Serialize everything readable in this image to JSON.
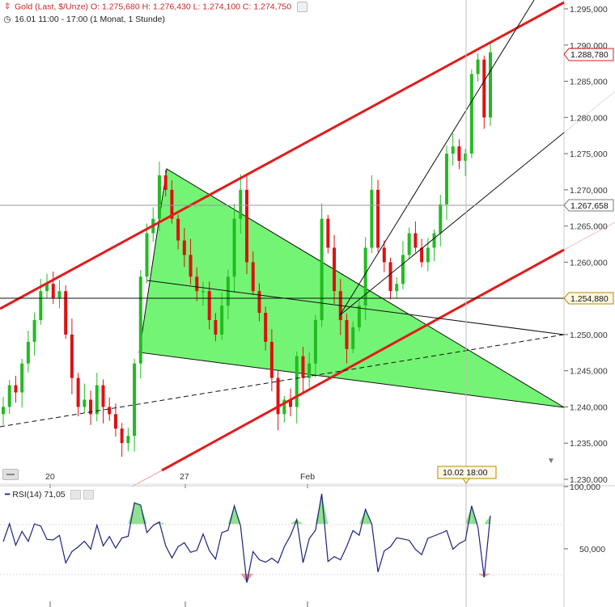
{
  "header": {
    "line1": "Gold (Last, $/Unze)  O: 1.275,680  H: 1.276,430  L: 1.274,100  C: 1.274,750",
    "line2": "16.01 11:00 - 17:00 (1 Monat, 1 Stunde)"
  },
  "rsi": {
    "label": "RSI(14)",
    "value": "71,05"
  },
  "cursor_date": "10.02 18:00",
  "colors": {
    "up": "#22bb22",
    "down": "#dd1111",
    "channel": "#e31b1b",
    "wedge": "#5cf25c",
    "rsi_line": "#1a237e",
    "rsi_over": "#8fe08f",
    "rsi_under": "#f19a9a"
  },
  "chart_data": {
    "type": "line",
    "price_axis": {
      "ticks": [
        "1.295,000",
        "1.290,000",
        "1.285,000",
        "1.280,000",
        "1.275,000",
        "1.270,000",
        "1.265,000",
        "1.260,000",
        "1.255,000",
        "1.250,000",
        "1.245,000",
        "1.240,000",
        "1.235,000",
        "1.230,000"
      ],
      "ylim": [
        1230,
        1297
      ]
    },
    "x_ticks": [
      "20",
      "27",
      "Feb"
    ],
    "price_labels": {
      "current": "1.288,780",
      "level_1": "1.267,658",
      "level_2": "1.254,880"
    },
    "series": [
      {
        "values": [
          1240,
          1243,
          1242,
          1246,
          1249,
          1252,
          1256,
          1257,
          1255,
          1256,
          1250,
          1244,
          1240,
          1241,
          1239,
          1243,
          1240,
          1239,
          1237,
          1235,
          1236,
          1246,
          1258,
          1264,
          1266,
          1272,
          1270,
          1266,
          1263,
          1261,
          1258,
          1256,
          1256,
          1252,
          1250,
          1254,
          1258,
          1266,
          1270,
          1260,
          1256,
          1253,
          1249,
          1244,
          1239,
          1241,
          1240,
          1247,
          1244,
          1246,
          1252,
          1266,
          1262,
          1256,
          1252,
          1248,
          1251,
          1254,
          1262,
          1270,
          1262,
          1260,
          1256,
          1257,
          1261,
          1264,
          1262,
          1260,
          1262,
          1264,
          1268,
          1275,
          1276,
          1274,
          1275,
          1286,
          1288,
          1280,
          1289
        ]
      }
    ],
    "rsi_axis": {
      "ticks": [
        "100,000",
        "50,000"
      ]
    }
  }
}
